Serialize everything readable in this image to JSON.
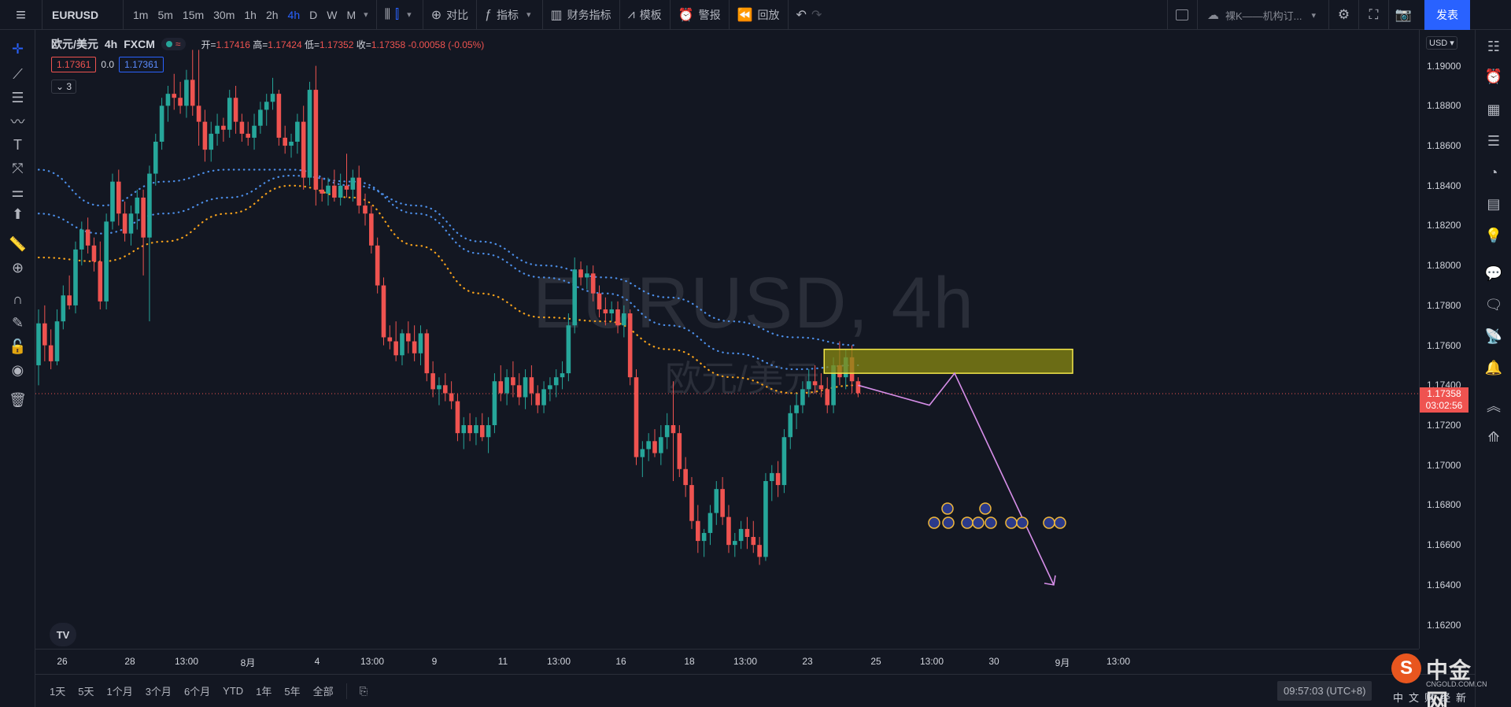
{
  "toolbar": {
    "symbol": "EURUSD",
    "intervals": [
      "1m",
      "5m",
      "15m",
      "30m",
      "1h",
      "2h",
      "4h",
      "D",
      "W",
      "M"
    ],
    "active_interval": "4h",
    "compare": "对比",
    "indicators": "指标",
    "financials": "财务指标",
    "templates": "模板",
    "alert": "警报",
    "replay": "回放",
    "layout_name": "裸K——机构订...",
    "publish": "发表"
  },
  "legend": {
    "symbol": "欧元/美元",
    "interval": "4h",
    "source": "FXCM",
    "open_label": "开=",
    "open": "1.17416",
    "high_label": "高=",
    "high": "1.17424",
    "low_label": "低=",
    "low": "1.17352",
    "close_label": "收=",
    "close": "1.17358",
    "change": "-0.00058 (-0.05%)",
    "bid": "1.17361",
    "spread": "0.0",
    "ask": "1.17361",
    "collapsed_count": "3"
  },
  "watermark": {
    "main": "EURUSD, 4h",
    "sub": "欧元/美元"
  },
  "price_axis": {
    "currency": "USD",
    "labels": [
      "1.19000",
      "1.18800",
      "1.18600",
      "1.18400",
      "1.18200",
      "1.18000",
      "1.17800",
      "1.17600",
      "1.17400",
      "1.17200",
      "1.17000",
      "1.16800",
      "1.16600",
      "1.16400",
      "1.16200"
    ],
    "current_price": "1.17358",
    "countdown": "03:02:56"
  },
  "time_axis": {
    "labels": [
      "26",
      "28",
      "13:00",
      "8月",
      "4",
      "13:00",
      "9",
      "11",
      "13:00",
      "16",
      "18",
      "13:00",
      "23",
      "25",
      "13:00",
      "30",
      "9月",
      "13:00"
    ]
  },
  "bottom_bar": {
    "ranges": [
      "1天",
      "5天",
      "1个月",
      "3个月",
      "6个月",
      "YTD",
      "1年",
      "5年",
      "全部"
    ],
    "clock": "09:57:03 (UTC+8)"
  },
  "brand": {
    "name": "中金网",
    "url": "CNGOLD.COM.CN",
    "tagline": "中文财经新媒体"
  },
  "colors": {
    "up": "#26a69a",
    "down": "#ef5350",
    "ma_blue": "#4c8ee8",
    "ma_orange": "#f7a21b",
    "zone_fill": "#8a8a12",
    "zone_border": "#f5e84a",
    "projection": "#d68ee8"
  },
  "chart_data": {
    "type": "candlestick",
    "symbol": "EURUSD",
    "interval": "4h",
    "ylim": [
      1.1608,
      1.1918
    ],
    "candles": [
      {
        "o": 1.175,
        "h": 1.1778,
        "l": 1.174,
        "c": 1.1771
      },
      {
        "o": 1.1771,
        "h": 1.178,
        "l": 1.1752,
        "c": 1.176
      },
      {
        "o": 1.176,
        "h": 1.1768,
        "l": 1.1748,
        "c": 1.1752
      },
      {
        "o": 1.1752,
        "h": 1.1778,
        "l": 1.175,
        "c": 1.1772
      },
      {
        "o": 1.1772,
        "h": 1.179,
        "l": 1.1768,
        "c": 1.1785
      },
      {
        "o": 1.1785,
        "h": 1.1795,
        "l": 1.1778,
        "c": 1.178
      },
      {
        "o": 1.178,
        "h": 1.1812,
        "l": 1.1776,
        "c": 1.1808
      },
      {
        "o": 1.1808,
        "h": 1.1822,
        "l": 1.18,
        "c": 1.1818
      },
      {
        "o": 1.1818,
        "h": 1.1824,
        "l": 1.1806,
        "c": 1.181
      },
      {
        "o": 1.181,
        "h": 1.1814,
        "l": 1.1797,
        "c": 1.1802
      },
      {
        "o": 1.1802,
        "h": 1.1812,
        "l": 1.1778,
        "c": 1.1782
      },
      {
        "o": 1.1782,
        "h": 1.1826,
        "l": 1.1778,
        "c": 1.1822
      },
      {
        "o": 1.1822,
        "h": 1.1846,
        "l": 1.1818,
        "c": 1.1842
      },
      {
        "o": 1.1842,
        "h": 1.1848,
        "l": 1.182,
        "c": 1.1826
      },
      {
        "o": 1.1826,
        "h": 1.1832,
        "l": 1.1812,
        "c": 1.1816
      },
      {
        "o": 1.1816,
        "h": 1.183,
        "l": 1.181,
        "c": 1.1826
      },
      {
        "o": 1.1826,
        "h": 1.1838,
        "l": 1.1818,
        "c": 1.1834
      },
      {
        "o": 1.1834,
        "h": 1.1838,
        "l": 1.1795,
        "c": 1.1814
      },
      {
        "o": 1.1814,
        "h": 1.185,
        "l": 1.1772,
        "c": 1.1846
      },
      {
        "o": 1.1846,
        "h": 1.1866,
        "l": 1.184,
        "c": 1.1862
      },
      {
        "o": 1.1862,
        "h": 1.1884,
        "l": 1.1858,
        "c": 1.188
      },
      {
        "o": 1.188,
        "h": 1.189,
        "l": 1.1872,
        "c": 1.1886
      },
      {
        "o": 1.1886,
        "h": 1.1896,
        "l": 1.1878,
        "c": 1.1884
      },
      {
        "o": 1.1884,
        "h": 1.1892,
        "l": 1.1876,
        "c": 1.188
      },
      {
        "o": 1.188,
        "h": 1.1898,
        "l": 1.1874,
        "c": 1.1893
      },
      {
        "o": 1.1893,
        "h": 1.1908,
        "l": 1.1875,
        "c": 1.188
      },
      {
        "o": 1.188,
        "h": 1.1908,
        "l": 1.186,
        "c": 1.1872
      },
      {
        "o": 1.1872,
        "h": 1.1878,
        "l": 1.1852,
        "c": 1.1858
      },
      {
        "o": 1.1858,
        "h": 1.1872,
        "l": 1.1852,
        "c": 1.1866
      },
      {
        "o": 1.1866,
        "h": 1.1876,
        "l": 1.186,
        "c": 1.187
      },
      {
        "o": 1.187,
        "h": 1.1874,
        "l": 1.1862,
        "c": 1.1868
      },
      {
        "o": 1.1868,
        "h": 1.1888,
        "l": 1.1864,
        "c": 1.1884
      },
      {
        "o": 1.1884,
        "h": 1.189,
        "l": 1.1866,
        "c": 1.1872
      },
      {
        "o": 1.1872,
        "h": 1.1876,
        "l": 1.1862,
        "c": 1.1866
      },
      {
        "o": 1.1866,
        "h": 1.1872,
        "l": 1.186,
        "c": 1.1864
      },
      {
        "o": 1.1864,
        "h": 1.1876,
        "l": 1.1858,
        "c": 1.187
      },
      {
        "o": 1.187,
        "h": 1.1882,
        "l": 1.1866,
        "c": 1.1878
      },
      {
        "o": 1.1878,
        "h": 1.1886,
        "l": 1.187,
        "c": 1.1882
      },
      {
        "o": 1.1882,
        "h": 1.1894,
        "l": 1.1878,
        "c": 1.1886
      },
      {
        "o": 1.1886,
        "h": 1.1888,
        "l": 1.186,
        "c": 1.1864
      },
      {
        "o": 1.1864,
        "h": 1.187,
        "l": 1.1856,
        "c": 1.186
      },
      {
        "o": 1.186,
        "h": 1.1866,
        "l": 1.1854,
        "c": 1.1862
      },
      {
        "o": 1.1862,
        "h": 1.1876,
        "l": 1.1856,
        "c": 1.1872
      },
      {
        "o": 1.1872,
        "h": 1.188,
        "l": 1.1838,
        "c": 1.1844
      },
      {
        "o": 1.1844,
        "h": 1.1892,
        "l": 1.184,
        "c": 1.1888
      },
      {
        "o": 1.1888,
        "h": 1.19,
        "l": 1.183,
        "c": 1.1838
      },
      {
        "o": 1.1838,
        "h": 1.1844,
        "l": 1.1832,
        "c": 1.1836
      },
      {
        "o": 1.1836,
        "h": 1.1844,
        "l": 1.183,
        "c": 1.184
      },
      {
        "o": 1.184,
        "h": 1.1848,
        "l": 1.1832,
        "c": 1.1834
      },
      {
        "o": 1.1834,
        "h": 1.1846,
        "l": 1.183,
        "c": 1.184
      },
      {
        "o": 1.184,
        "h": 1.1856,
        "l": 1.1834,
        "c": 1.1838
      },
      {
        "o": 1.1838,
        "h": 1.1848,
        "l": 1.1832,
        "c": 1.1844
      },
      {
        "o": 1.1844,
        "h": 1.185,
        "l": 1.1826,
        "c": 1.183
      },
      {
        "o": 1.183,
        "h": 1.1836,
        "l": 1.182,
        "c": 1.1826
      },
      {
        "o": 1.1826,
        "h": 1.183,
        "l": 1.1806,
        "c": 1.181
      },
      {
        "o": 1.181,
        "h": 1.1814,
        "l": 1.1786,
        "c": 1.179
      },
      {
        "o": 1.179,
        "h": 1.1794,
        "l": 1.176,
        "c": 1.1764
      },
      {
        "o": 1.1764,
        "h": 1.177,
        "l": 1.1758,
        "c": 1.1762
      },
      {
        "o": 1.1762,
        "h": 1.1772,
        "l": 1.1752,
        "c": 1.1755
      },
      {
        "o": 1.1755,
        "h": 1.1768,
        "l": 1.175,
        "c": 1.1766
      },
      {
        "o": 1.1766,
        "h": 1.1772,
        "l": 1.1756,
        "c": 1.1762
      },
      {
        "o": 1.1762,
        "h": 1.177,
        "l": 1.1752,
        "c": 1.1756
      },
      {
        "o": 1.1756,
        "h": 1.177,
        "l": 1.175,
        "c": 1.1766
      },
      {
        "o": 1.1766,
        "h": 1.1768,
        "l": 1.1742,
        "c": 1.1746
      },
      {
        "o": 1.1746,
        "h": 1.1752,
        "l": 1.1734,
        "c": 1.1738
      },
      {
        "o": 1.1738,
        "h": 1.1744,
        "l": 1.173,
        "c": 1.174
      },
      {
        "o": 1.174,
        "h": 1.1746,
        "l": 1.1732,
        "c": 1.1736
      },
      {
        "o": 1.1736,
        "h": 1.1742,
        "l": 1.1728,
        "c": 1.1732
      },
      {
        "o": 1.1732,
        "h": 1.1736,
        "l": 1.1712,
        "c": 1.1716
      },
      {
        "o": 1.1716,
        "h": 1.1724,
        "l": 1.1708,
        "c": 1.172
      },
      {
        "o": 1.172,
        "h": 1.1726,
        "l": 1.1712,
        "c": 1.1716
      },
      {
        "o": 1.1716,
        "h": 1.1724,
        "l": 1.171,
        "c": 1.172
      },
      {
        "o": 1.172,
        "h": 1.1726,
        "l": 1.1712,
        "c": 1.1714
      },
      {
        "o": 1.1714,
        "h": 1.1724,
        "l": 1.1706,
        "c": 1.172
      },
      {
        "o": 1.172,
        "h": 1.1746,
        "l": 1.1716,
        "c": 1.1742
      },
      {
        "o": 1.1742,
        "h": 1.175,
        "l": 1.1732,
        "c": 1.1736
      },
      {
        "o": 1.1736,
        "h": 1.1748,
        "l": 1.173,
        "c": 1.1744
      },
      {
        "o": 1.1744,
        "h": 1.1752,
        "l": 1.1734,
        "c": 1.174
      },
      {
        "o": 1.174,
        "h": 1.1746,
        "l": 1.173,
        "c": 1.1734
      },
      {
        "o": 1.1734,
        "h": 1.1748,
        "l": 1.1728,
        "c": 1.1744
      },
      {
        "o": 1.1744,
        "h": 1.175,
        "l": 1.173,
        "c": 1.1736
      },
      {
        "o": 1.1736,
        "h": 1.174,
        "l": 1.1726,
        "c": 1.173
      },
      {
        "o": 1.173,
        "h": 1.1742,
        "l": 1.1726,
        "c": 1.1738
      },
      {
        "o": 1.1738,
        "h": 1.1744,
        "l": 1.1732,
        "c": 1.174
      },
      {
        "o": 1.174,
        "h": 1.1748,
        "l": 1.1734,
        "c": 1.1744
      },
      {
        "o": 1.1744,
        "h": 1.1752,
        "l": 1.1738,
        "c": 1.1746
      },
      {
        "o": 1.1746,
        "h": 1.1776,
        "l": 1.1742,
        "c": 1.177
      },
      {
        "o": 1.177,
        "h": 1.1804,
        "l": 1.1766,
        "c": 1.1798
      },
      {
        "o": 1.1798,
        "h": 1.1802,
        "l": 1.179,
        "c": 1.1794
      },
      {
        "o": 1.1794,
        "h": 1.18,
        "l": 1.1788,
        "c": 1.1796
      },
      {
        "o": 1.1796,
        "h": 1.18,
        "l": 1.1782,
        "c": 1.1786
      },
      {
        "o": 1.1786,
        "h": 1.179,
        "l": 1.1774,
        "c": 1.1778
      },
      {
        "o": 1.1778,
        "h": 1.1784,
        "l": 1.177,
        "c": 1.1776
      },
      {
        "o": 1.1776,
        "h": 1.1782,
        "l": 1.1772,
        "c": 1.1778
      },
      {
        "o": 1.1778,
        "h": 1.1782,
        "l": 1.1766,
        "c": 1.177
      },
      {
        "o": 1.177,
        "h": 1.178,
        "l": 1.1764,
        "c": 1.1776
      },
      {
        "o": 1.1776,
        "h": 1.1778,
        "l": 1.174,
        "c": 1.1744
      },
      {
        "o": 1.1744,
        "h": 1.1748,
        "l": 1.17,
        "c": 1.1704
      },
      {
        "o": 1.1704,
        "h": 1.1712,
        "l": 1.1694,
        "c": 1.1708
      },
      {
        "o": 1.1708,
        "h": 1.1716,
        "l": 1.1702,
        "c": 1.1712
      },
      {
        "o": 1.1712,
        "h": 1.1718,
        "l": 1.1704,
        "c": 1.1706
      },
      {
        "o": 1.1706,
        "h": 1.172,
        "l": 1.17,
        "c": 1.1714
      },
      {
        "o": 1.1714,
        "h": 1.1726,
        "l": 1.1708,
        "c": 1.172
      },
      {
        "o": 1.172,
        "h": 1.1742,
        "l": 1.1692,
        "c": 1.1716
      },
      {
        "o": 1.1716,
        "h": 1.172,
        "l": 1.1694,
        "c": 1.1698
      },
      {
        "o": 1.1698,
        "h": 1.1704,
        "l": 1.1684,
        "c": 1.169
      },
      {
        "o": 1.169,
        "h": 1.1694,
        "l": 1.1668,
        "c": 1.1672
      },
      {
        "o": 1.1672,
        "h": 1.168,
        "l": 1.1656,
        "c": 1.1662
      },
      {
        "o": 1.1662,
        "h": 1.1668,
        "l": 1.1654,
        "c": 1.1666
      },
      {
        "o": 1.1666,
        "h": 1.168,
        "l": 1.166,
        "c": 1.1676
      },
      {
        "o": 1.1676,
        "h": 1.1692,
        "l": 1.167,
        "c": 1.1688
      },
      {
        "o": 1.1688,
        "h": 1.1694,
        "l": 1.167,
        "c": 1.1674
      },
      {
        "o": 1.1674,
        "h": 1.168,
        "l": 1.1656,
        "c": 1.166
      },
      {
        "o": 1.166,
        "h": 1.1666,
        "l": 1.1654,
        "c": 1.1662
      },
      {
        "o": 1.1662,
        "h": 1.1672,
        "l": 1.1658,
        "c": 1.1668
      },
      {
        "o": 1.1668,
        "h": 1.1674,
        "l": 1.1658,
        "c": 1.1664
      },
      {
        "o": 1.1664,
        "h": 1.1672,
        "l": 1.1656,
        "c": 1.166
      },
      {
        "o": 1.166,
        "h": 1.1664,
        "l": 1.165,
        "c": 1.1654
      },
      {
        "o": 1.1654,
        "h": 1.1696,
        "l": 1.1652,
        "c": 1.1692
      },
      {
        "o": 1.1692,
        "h": 1.17,
        "l": 1.1682,
        "c": 1.1696
      },
      {
        "o": 1.1696,
        "h": 1.1702,
        "l": 1.1684,
        "c": 1.169
      },
      {
        "o": 1.169,
        "h": 1.1718,
        "l": 1.1686,
        "c": 1.1714
      },
      {
        "o": 1.1714,
        "h": 1.173,
        "l": 1.1708,
        "c": 1.1726
      },
      {
        "o": 1.1726,
        "h": 1.1736,
        "l": 1.1718,
        "c": 1.173
      },
      {
        "o": 1.173,
        "h": 1.1742,
        "l": 1.1726,
        "c": 1.1738
      },
      {
        "o": 1.1738,
        "h": 1.1748,
        "l": 1.1734,
        "c": 1.1742
      },
      {
        "o": 1.1742,
        "h": 1.175,
        "l": 1.1736,
        "c": 1.174
      },
      {
        "o": 1.174,
        "h": 1.1746,
        "l": 1.1734,
        "c": 1.1738
      },
      {
        "o": 1.1738,
        "h": 1.1744,
        "l": 1.1726,
        "c": 1.173
      },
      {
        "o": 1.173,
        "h": 1.1754,
        "l": 1.1726,
        "c": 1.175
      },
      {
        "o": 1.175,
        "h": 1.1762,
        "l": 1.174,
        "c": 1.1744
      },
      {
        "o": 1.1744,
        "h": 1.1758,
        "l": 1.1738,
        "c": 1.1754
      },
      {
        "o": 1.1754,
        "h": 1.176,
        "l": 1.1736,
        "c": 1.1742
      },
      {
        "o": 1.1742,
        "h": 1.1744,
        "l": 1.1734,
        "c": 1.1736
      }
    ],
    "moving_averages": [
      {
        "color": "blue",
        "style": "dotted",
        "values": [
          1.1848,
          1.183,
          1.1842,
          1.1848,
          1.1848,
          1.184,
          1.183,
          1.1812,
          1.18,
          1.1794,
          1.1784,
          1.1772,
          1.1764,
          1.176
        ]
      },
      {
        "color": "blue",
        "style": "dotted",
        "values": [
          1.1826,
          1.1816,
          1.1826,
          1.1834,
          1.1845,
          1.1842,
          1.1826,
          1.1806,
          1.1794,
          1.1786,
          1.177,
          1.1756,
          1.1748,
          1.175
        ]
      },
      {
        "color": "orange",
        "style": "dotted",
        "values": [
          1.1804,
          1.1802,
          1.1812,
          1.1826,
          1.184,
          1.1834,
          1.181,
          1.1786,
          1.1774,
          1.1772,
          1.1758,
          1.1744,
          1.1736,
          1.174
        ]
      }
    ],
    "annotations": {
      "resistance_zone": {
        "price_top": 1.1758,
        "price_bottom": 1.1746
      },
      "projected_path": [
        1.174,
        1.173,
        1.1746,
        1.164
      ]
    },
    "last_price": 1.17358
  }
}
